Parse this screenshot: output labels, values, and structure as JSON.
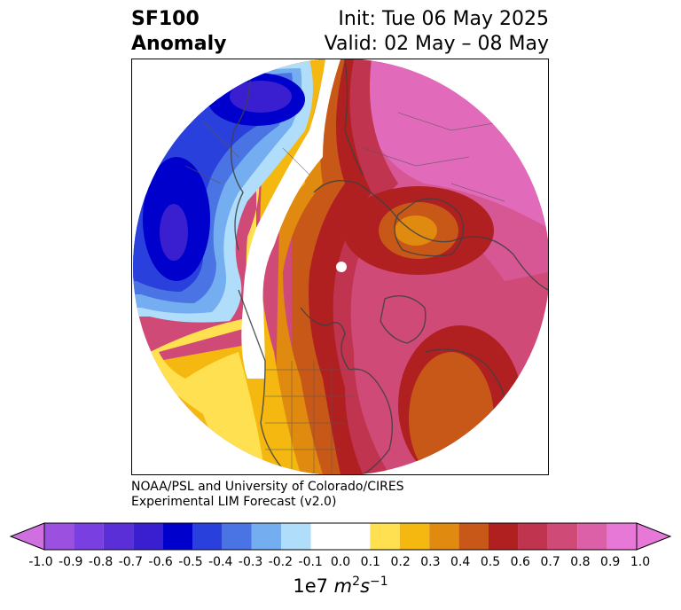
{
  "title": {
    "left_line1": "SF100",
    "left_line2": "Anomaly",
    "right_line1": "Init: Tue 06 May 2025",
    "right_line2": "Valid: 02 May – 08 May"
  },
  "credit": {
    "line1": "NOAA/PSL and University of Colorado/CIRES",
    "line2": "Experimental LIM Forecast (v2.0)"
  },
  "colorbar": {
    "label_prefix": "1e7",
    "label_unit_base": "m",
    "label_unit_exp1": "2",
    "label_unit_base2": "s",
    "label_unit_exp2": "−1",
    "ticks": [
      "-1.0",
      "-0.9",
      "-0.8",
      "-0.7",
      "-0.6",
      "-0.5",
      "-0.4",
      "-0.3",
      "-0.2",
      "-0.1",
      "0.0",
      "0.1",
      "0.2",
      "0.3",
      "0.4",
      "0.5",
      "0.6",
      "0.7",
      "0.8",
      "0.9",
      "1.0"
    ],
    "bins": [
      {
        "from": -1.0,
        "to": -0.9,
        "color": "#9b50e0"
      },
      {
        "from": -0.9,
        "to": -0.8,
        "color": "#7a3fe0"
      },
      {
        "from": -0.8,
        "to": -0.7,
        "color": "#5a2fd8"
      },
      {
        "from": -0.7,
        "to": -0.6,
        "color": "#3a1fd0"
      },
      {
        "from": -0.6,
        "to": -0.5,
        "color": "#0000cd"
      },
      {
        "from": -0.5,
        "to": -0.4,
        "color": "#2a40dc"
      },
      {
        "from": -0.4,
        "to": -0.3,
        "color": "#4a74e4"
      },
      {
        "from": -0.3,
        "to": -0.2,
        "color": "#74aef0"
      },
      {
        "from": -0.2,
        "to": -0.1,
        "color": "#b0ddfa"
      },
      {
        "from": -0.1,
        "to": 0.1,
        "color": "#ffffff"
      },
      {
        "from": 0.1,
        "to": 0.2,
        "color": "#ffe050"
      },
      {
        "from": 0.2,
        "to": 0.3,
        "color": "#f4b810"
      },
      {
        "from": 0.3,
        "to": 0.4,
        "color": "#e08a10"
      },
      {
        "from": 0.4,
        "to": 0.5,
        "color": "#c85818"
      },
      {
        "from": 0.5,
        "to": 0.6,
        "color": "#b02020"
      },
      {
        "from": 0.6,
        "to": 0.7,
        "color": "#c03450"
      },
      {
        "from": 0.7,
        "to": 0.8,
        "color": "#d04a78"
      },
      {
        "from": 0.8,
        "to": 0.9,
        "color": "#dc60a8"
      },
      {
        "from": 0.9,
        "to": 1.0,
        "color": "#e878d8"
      }
    ],
    "under_color": "#d070e0",
    "over_color": "#e878d8"
  }
}
